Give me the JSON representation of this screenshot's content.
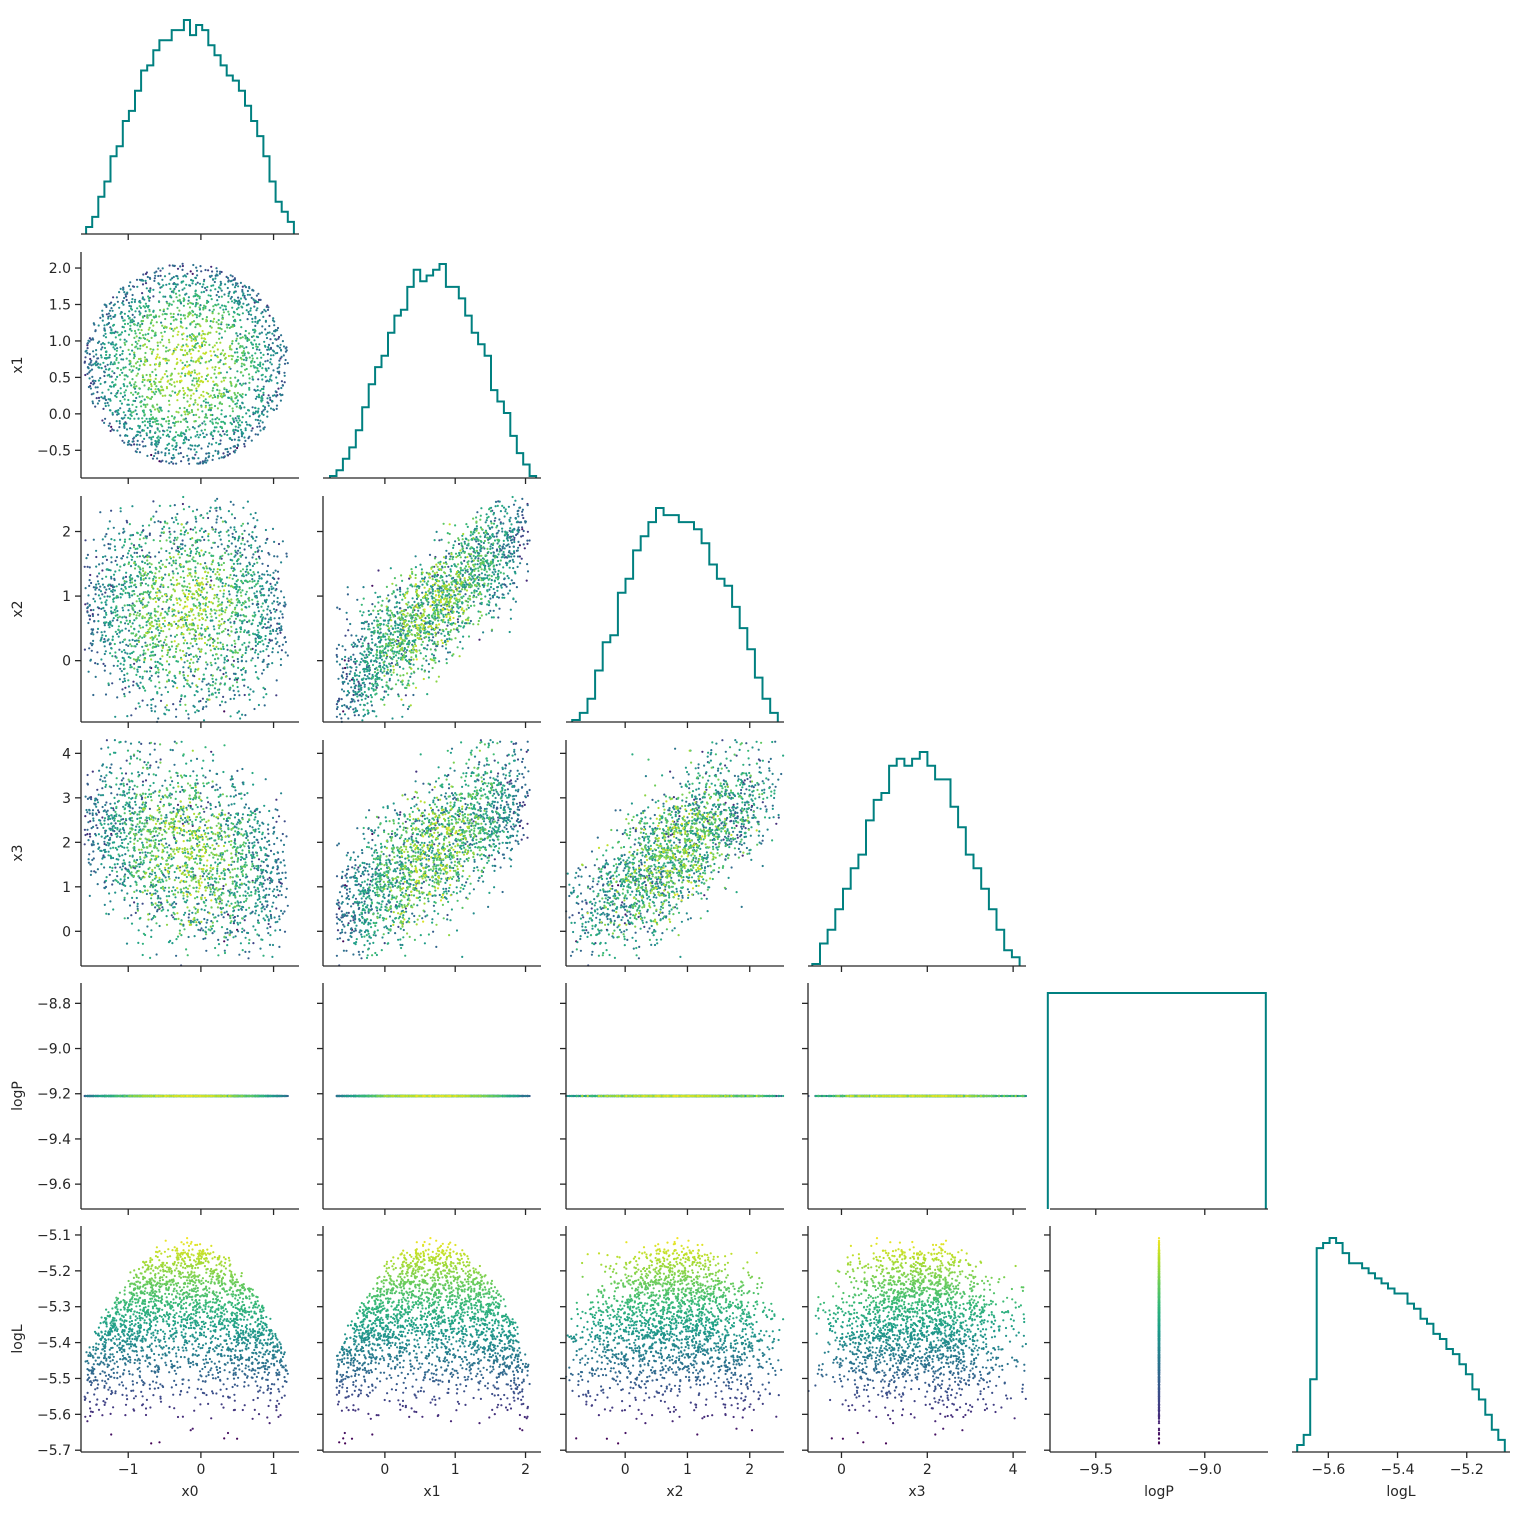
{
  "colors": {
    "histogram": "#008080",
    "axis": "#262626",
    "colormap": "viridis"
  },
  "chart_data": {
    "type": "corner",
    "scatter_color_by": "logL",
    "variables": [
      {
        "name": "x0",
        "label": "x0",
        "range": [
          -1.65,
          1.35
        ],
        "ticks": [
          -1,
          0,
          1
        ],
        "hist": [
          1,
          3,
          7,
          10,
          15,
          17,
          22,
          24,
          28,
          32,
          33,
          36,
          38,
          38,
          40,
          40,
          42,
          39,
          41,
          40,
          37,
          35,
          33,
          31,
          30,
          28,
          25,
          22,
          19,
          15,
          10,
          6,
          4,
          2
        ]
      },
      {
        "name": "x1",
        "label": "x1",
        "range": [
          -0.88,
          2.22
        ],
        "ticks": [
          -0.5,
          0.0,
          0.5,
          1.0,
          1.5,
          2.0
        ],
        "hist": [
          0,
          1,
          3,
          5,
          8,
          12,
          16,
          19,
          21,
          25,
          28,
          29,
          33,
          36,
          34,
          35,
          36,
          37,
          33,
          33,
          31,
          28,
          25,
          23,
          21,
          15,
          13,
          11,
          7,
          4,
          2,
          0
        ]
      },
      {
        "name": "x2",
        "label": "x2",
        "range": [
          -0.95,
          2.55
        ],
        "ticks": [
          0,
          1,
          2
        ],
        "hist": [
          0,
          1,
          3,
          7,
          11,
          12,
          18,
          20,
          24,
          26,
          28,
          30,
          29,
          29,
          28,
          28,
          27,
          25,
          22,
          20,
          19,
          16,
          13,
          10,
          6,
          3,
          1
        ]
      },
      {
        "name": "x3",
        "label": "x3",
        "range": [
          -0.78,
          4.3
        ],
        "ticks": [
          0,
          1,
          2,
          3,
          4
        ],
        "hist": [
          0,
          3,
          5,
          8,
          11,
          14,
          16,
          21,
          24,
          25,
          29,
          30,
          29,
          30,
          31,
          29,
          27,
          27,
          23,
          20,
          16,
          14,
          11,
          8,
          5,
          2,
          1
        ]
      },
      {
        "name": "logP",
        "label": "logP",
        "range": [
          -9.71,
          -8.71
        ],
        "ticks": [
          -9.6,
          -9.4,
          -9.2,
          -9.0,
          -8.8
        ],
        "hist_box": [
          -9.72,
          -8.72
        ],
        "constant": -9.21
      },
      {
        "name": "logL",
        "label": "logL",
        "range": [
          -5.705,
          -5.075
        ],
        "ticks": [
          -5.7,
          -5.6,
          -5.5,
          -5.4,
          -5.3,
          -5.2,
          -5.1
        ],
        "hist": [
          1,
          3,
          14,
          40,
          41,
          42,
          41,
          39,
          37,
          37,
          36,
          35,
          34,
          33,
          32,
          31,
          31,
          29,
          28,
          26,
          25,
          23,
          22,
          20,
          19,
          17,
          15,
          12,
          10,
          7,
          4,
          2
        ]
      }
    ],
    "x_tick_labels": {
      "x0": [
        "−1",
        "0",
        "1"
      ],
      "x1": [
        "0",
        "1",
        "2"
      ],
      "x2": [
        "0",
        "1",
        "2"
      ],
      "x3": [
        "0",
        "2",
        "4"
      ],
      "logP": [
        "−9.5",
        "−9.0"
      ],
      "logL": [
        "−5.6",
        "−5.4",
        "−5.2"
      ]
    },
    "x_ticks": {
      "x0": [
        -1,
        0,
        1
      ],
      "x1": [
        0,
        1,
        2
      ],
      "x2": [
        0,
        1,
        2
      ],
      "x3": [
        0,
        2,
        4
      ],
      "logP": [
        -9.5,
        -9.0
      ],
      "logL": [
        -5.6,
        -5.4,
        -5.2
      ]
    },
    "y_tick_labels": {
      "x1": [
        "−0.5",
        "0.0",
        "0.5",
        "1.0",
        "1.5",
        "2.0"
      ],
      "x2": [
        "0",
        "1",
        "2"
      ],
      "x3": [
        "0",
        "1",
        "2",
        "3",
        "4"
      ],
      "logP": [
        "−9.6",
        "−9.4",
        "−9.2",
        "−9.0",
        "−8.8"
      ],
      "logL": [
        "−5.7",
        "−5.6",
        "−5.5",
        "−5.4",
        "−5.3",
        "−5.2",
        "−5.1"
      ]
    },
    "y_ticks": {
      "x1": [
        -0.5,
        0.0,
        0.5,
        1.0,
        1.5,
        2.0
      ],
      "x2": [
        0,
        1,
        2
      ],
      "x3": [
        0,
        1,
        2,
        3,
        4
      ],
      "logP": [
        -9.6,
        -9.4,
        -9.2,
        -9.0,
        -8.8
      ],
      "logL": [
        -5.7,
        -5.6,
        -5.5,
        -5.4,
        -5.3,
        -5.2,
        -5.1
      ]
    },
    "model": {
      "means": {
        "x0": -0.1,
        "x1": 0.7,
        "x2": 0.8,
        "x3": 1.8
      },
      "logL_max": -5.1,
      "logL_min": -5.68
    }
  }
}
